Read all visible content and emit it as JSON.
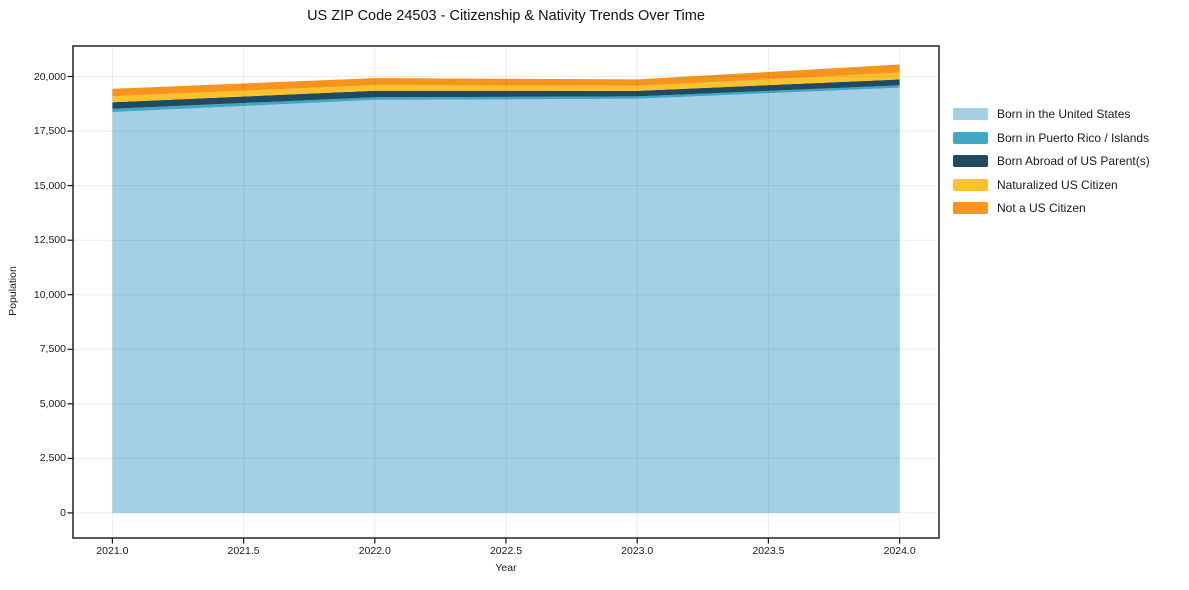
{
  "figure": {
    "background": "#ffffff"
  },
  "chart_data": {
    "type": "area",
    "stacked": true,
    "title": "US ZIP Code 24503 - Citizenship & Nativity Trends Over Time",
    "xlabel": "Year",
    "ylabel": "Population",
    "x": [
      2021,
      2022,
      2023,
      2024
    ],
    "series": [
      {
        "name": "Born in the United States",
        "color": "#a4cfe4",
        "values": [
          18370,
          18930,
          18980,
          19490
        ]
      },
      {
        "name": "Born in Puerto Rico / Islands",
        "color": "#41a7c5",
        "values": [
          150,
          120,
          110,
          110
        ]
      },
      {
        "name": "Born Abroad of US Parent(s)",
        "color": "#1f4a5f",
        "values": [
          300,
          300,
          250,
          270
        ]
      },
      {
        "name": "Naturalized US Citizen",
        "color": "#fcc22d",
        "values": [
          280,
          260,
          230,
          310
        ]
      },
      {
        "name": "Not a US Citizen",
        "color": "#f7941e",
        "values": [
          340,
          320,
          300,
          370
        ]
      }
    ],
    "xlim": [
      2020.85,
      2024.15
    ],
    "ylim": [
      -1150,
      21400
    ],
    "xticks": {
      "values": [
        2021.0,
        2021.5,
        2022.0,
        2022.5,
        2023.0,
        2023.5,
        2024.0
      ],
      "labels": [
        "2021.0",
        "2021.5",
        "2022.0",
        "2022.5",
        "2023.0",
        "2023.5",
        "2024.0"
      ]
    },
    "yticks": {
      "values": [
        0,
        2500,
        5000,
        7500,
        10000,
        12500,
        15000,
        17500,
        20000
      ],
      "labels": [
        "0",
        "2,500",
        "5,000",
        "7,500",
        "10,000",
        "12,500",
        "15,000",
        "17,500",
        "20,000"
      ]
    },
    "grid": true,
    "legend_position": "right-outside"
  },
  "colors": {
    "spine": "#141414",
    "grid": "rgba(0,0,0,0.07)",
    "tick": "#141414"
  }
}
